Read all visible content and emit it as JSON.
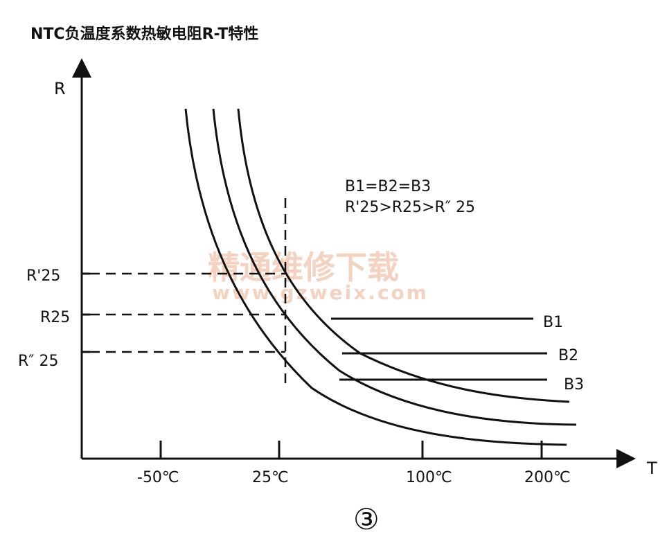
{
  "title": "NTC负温度系数热敏电阻R-T特性",
  "axes": {
    "y_label": "R",
    "x_label": "T",
    "x_ticks": [
      "-50℃",
      "25℃",
      "100℃",
      "200℃"
    ],
    "y_ticks": [
      "R'25",
      "R25",
      "R″ 25"
    ]
  },
  "annotation": {
    "line1": "B1=B2=B3",
    "line2": "R'25>R25>R″ 25"
  },
  "curves": [
    {
      "name": "B1",
      "label": "B1"
    },
    {
      "name": "B2",
      "label": "B2"
    },
    {
      "name": "B3",
      "label": "B3"
    }
  ],
  "watermark": {
    "line1": "精通维修下载",
    "line2": "www.gzweix.com"
  },
  "figure_number": "③",
  "colors": {
    "ink": "#111111",
    "watermark": "#f3c6b0",
    "background": "#ffffff"
  }
}
